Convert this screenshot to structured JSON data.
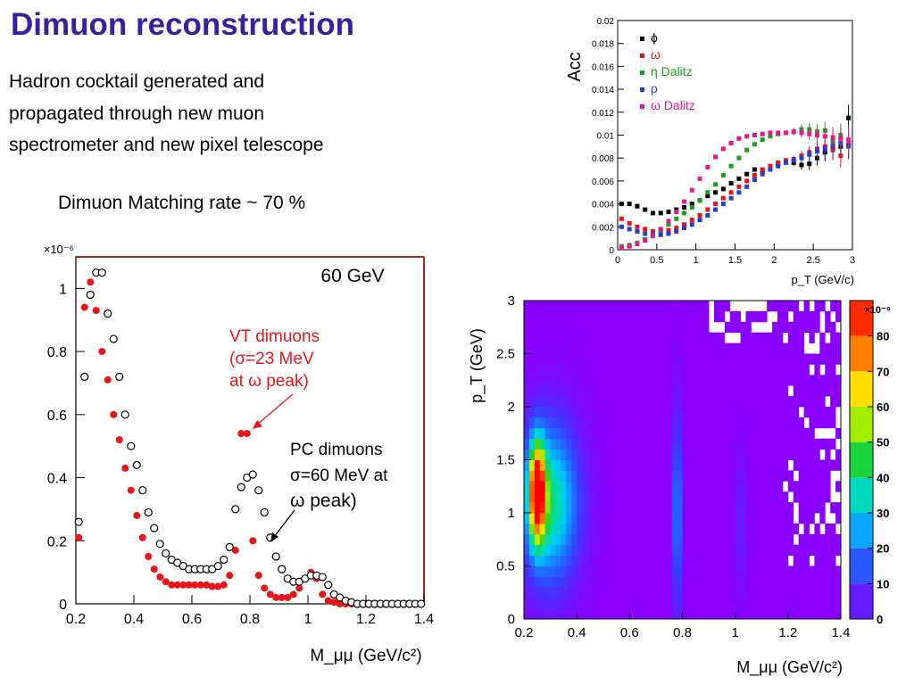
{
  "slide": {
    "title": "Dimuon reconstruction",
    "subtitle_lines": [
      "Hadron cocktail generated and",
      "propagated through new muon",
      "spectrometer and new pixel telescope"
    ],
    "matching_rate": "Dimuon Matching rate ~ 70 %"
  },
  "colors": {
    "title": "#3a1fa0",
    "vt": "#e8141a",
    "pc": "#000000",
    "frame": "#b22222"
  },
  "chart_data": [
    {
      "type": "scatter",
      "title": "60 GeV",
      "xlabel": "M_μμ (GeV/c²)",
      "ylabel": "",
      "exponent_label": "×10⁻⁶",
      "xlim": [
        0.2,
        1.4
      ],
      "ylim": [
        0,
        1.1
      ],
      "xticks": [
        "0.2",
        "0.4",
        "0.6",
        "0.8",
        "1",
        "1.2",
        "1.4"
      ],
      "yticks": [
        "0",
        "0.2",
        "0.4",
        "0.6",
        "0.8",
        "1"
      ],
      "annotations": {
        "vt_label": [
          "VT dimuons",
          "(σ=23 MeV",
          "at  ω peak)"
        ],
        "pc_label": [
          "PC dimuons",
          "σ=60 MeV at",
          "ω peak)"
        ]
      },
      "series": [
        {
          "name": "VT dimuons",
          "color": "#e8141a",
          "marker": "filled",
          "x": [
            0.21,
            0.23,
            0.25,
            0.27,
            0.29,
            0.31,
            0.33,
            0.35,
            0.37,
            0.39,
            0.41,
            0.43,
            0.45,
            0.47,
            0.49,
            0.51,
            0.53,
            0.55,
            0.57,
            0.59,
            0.61,
            0.63,
            0.65,
            0.67,
            0.69,
            0.71,
            0.73,
            0.75,
            0.77,
            0.79,
            0.81,
            0.83,
            0.85,
            0.87,
            0.89,
            0.91,
            0.93,
            0.95,
            0.97,
            0.99,
            1.01,
            1.03,
            1.05,
            1.07,
            1.09,
            1.11,
            1.13,
            1.15,
            1.17,
            1.19,
            1.21,
            1.23,
            1.25,
            1.27,
            1.29,
            1.31,
            1.33,
            1.35,
            1.37,
            1.39
          ],
          "y": [
            0.21,
            0.94,
            1.02,
            0.93,
            0.8,
            0.71,
            0.6,
            0.52,
            0.43,
            0.36,
            0.28,
            0.21,
            0.15,
            0.11,
            0.085,
            0.07,
            0.06,
            0.06,
            0.06,
            0.06,
            0.06,
            0.06,
            0.06,
            0.055,
            0.055,
            0.06,
            0.09,
            0.17,
            0.54,
            0.54,
            0.2,
            0.09,
            0.05,
            0.03,
            0.02,
            0.02,
            0.02,
            0.03,
            0.05,
            0.08,
            0.1,
            0.08,
            0.03,
            0.01,
            0.005,
            0,
            0,
            0,
            0,
            0,
            0,
            0,
            0,
            0,
            0,
            0,
            0,
            0,
            0,
            0
          ]
        },
        {
          "name": "PC dimuons",
          "color": "#000000",
          "marker": "open",
          "x": [
            0.21,
            0.23,
            0.25,
            0.27,
            0.29,
            0.31,
            0.33,
            0.35,
            0.37,
            0.39,
            0.41,
            0.43,
            0.45,
            0.47,
            0.49,
            0.51,
            0.53,
            0.55,
            0.57,
            0.59,
            0.61,
            0.63,
            0.65,
            0.67,
            0.69,
            0.71,
            0.73,
            0.75,
            0.77,
            0.79,
            0.81,
            0.83,
            0.85,
            0.87,
            0.89,
            0.91,
            0.93,
            0.95,
            0.97,
            0.99,
            1.01,
            1.03,
            1.05,
            1.07,
            1.09,
            1.11,
            1.13,
            1.15,
            1.17,
            1.19,
            1.21,
            1.23,
            1.25,
            1.27,
            1.29,
            1.31,
            1.33,
            1.35,
            1.37,
            1.39
          ],
          "y": [
            0.26,
            0.72,
            0.98,
            1.05,
            1.05,
            0.92,
            0.84,
            0.72,
            0.6,
            0.5,
            0.44,
            0.36,
            0.29,
            0.24,
            0.19,
            0.16,
            0.14,
            0.13,
            0.12,
            0.11,
            0.11,
            0.11,
            0.11,
            0.11,
            0.12,
            0.14,
            0.18,
            0.3,
            0.37,
            0.4,
            0.41,
            0.36,
            0.29,
            0.21,
            0.15,
            0.11,
            0.08,
            0.07,
            0.07,
            0.08,
            0.09,
            0.09,
            0.085,
            0.06,
            0.03,
            0.02,
            0.01,
            0.005,
            0,
            0,
            0,
            0,
            0,
            0,
            0,
            0,
            0,
            0,
            0,
            0
          ]
        }
      ]
    },
    {
      "type": "scatter",
      "title": "",
      "ylabel": "Acc",
      "xlabel": "p_T (GeV/c)",
      "xlim": [
        0,
        3
      ],
      "ylim": [
        0,
        0.02
      ],
      "xticks": [
        "0",
        "0.5",
        "1",
        "1.5",
        "2",
        "2.5",
        "3"
      ],
      "yticks": [
        "0",
        "0.002",
        "0.004",
        "0.006",
        "0.008",
        "0.01",
        "0.012",
        "0.014",
        "0.016",
        "0.018",
        "0.02"
      ],
      "series": [
        {
          "name": "ϕ",
          "color": "#000000",
          "x": [
            0.05,
            0.15,
            0.25,
            0.35,
            0.45,
            0.55,
            0.65,
            0.75,
            0.85,
            0.95,
            1.05,
            1.15,
            1.25,
            1.35,
            1.45,
            1.55,
            1.65,
            1.75,
            1.85,
            1.95,
            2.05,
            2.15,
            2.25,
            2.35,
            2.45,
            2.55,
            2.65,
            2.75,
            2.85,
            2.95
          ],
          "y": [
            0.004,
            0.004,
            0.0038,
            0.0035,
            0.0032,
            0.0032,
            0.0033,
            0.0035,
            0.0037,
            0.004,
            0.0043,
            0.0047,
            0.005,
            0.0053,
            0.0058,
            0.0062,
            0.0066,
            0.007,
            0.0068,
            0.0072,
            0.0075,
            0.0077,
            0.0076,
            0.0074,
            0.0075,
            0.008,
            0.0085,
            0.0088,
            0.009,
            0.0115
          ]
        },
        {
          "name": "ω",
          "color": "#e8141a",
          "x": [
            0.05,
            0.15,
            0.25,
            0.35,
            0.45,
            0.55,
            0.65,
            0.75,
            0.85,
            0.95,
            1.05,
            1.15,
            1.25,
            1.35,
            1.45,
            1.55,
            1.65,
            1.75,
            1.85,
            1.95,
            2.05,
            2.15,
            2.25,
            2.35,
            2.45,
            2.55,
            2.65,
            2.75,
            2.85,
            2.95
          ],
          "y": [
            0.0027,
            0.0023,
            0.002,
            0.0018,
            0.0016,
            0.0016,
            0.0017,
            0.0019,
            0.0022,
            0.0026,
            0.003,
            0.0035,
            0.004,
            0.0045,
            0.005,
            0.0055,
            0.006,
            0.0065,
            0.007,
            0.0073,
            0.0076,
            0.0078,
            0.0079,
            0.0082,
            0.0085,
            0.0088,
            0.009,
            0.0087,
            0.0082,
            0.0092
          ]
        },
        {
          "name": "η Dalitz",
          "color": "#18a018",
          "x": [
            0.05,
            0.15,
            0.25,
            0.35,
            0.45,
            0.55,
            0.65,
            0.75,
            0.85,
            0.95,
            1.05,
            1.15,
            1.25,
            1.35,
            1.45,
            1.55,
            1.65,
            1.75,
            1.85,
            1.95,
            2.05,
            2.15,
            2.25,
            2.35,
            2.45,
            2.55,
            2.65,
            2.75,
            2.85,
            2.95
          ],
          "y": [
            0.0003,
            0.0004,
            0.0006,
            0.0009,
            0.0013,
            0.0017,
            0.0022,
            0.0027,
            0.0032,
            0.0037,
            0.0043,
            0.005,
            0.0057,
            0.0065,
            0.0073,
            0.008,
            0.0087,
            0.0092,
            0.0096,
            0.0099,
            0.0101,
            0.0102,
            0.0103,
            0.0105,
            0.0105,
            0.0103,
            0.0104,
            0.0095,
            0.01,
            0.009
          ]
        },
        {
          "name": "ρ",
          "color": "#2040d0",
          "x": [
            0.05,
            0.15,
            0.25,
            0.35,
            0.45,
            0.55,
            0.65,
            0.75,
            0.85,
            0.95,
            1.05,
            1.15,
            1.25,
            1.35,
            1.45,
            1.55,
            1.65,
            1.75,
            1.85,
            1.95,
            2.05,
            2.15,
            2.25,
            2.35,
            2.45,
            2.55,
            2.65,
            2.75,
            2.85,
            2.95
          ],
          "y": [
            0.002,
            0.0018,
            0.0016,
            0.0014,
            0.0013,
            0.0013,
            0.0014,
            0.0016,
            0.0019,
            0.0022,
            0.0026,
            0.003,
            0.0035,
            0.004,
            0.0045,
            0.005,
            0.0055,
            0.0061,
            0.0066,
            0.007,
            0.0073,
            0.0076,
            0.0078,
            0.008,
            0.0083,
            0.0086,
            0.0088,
            0.0091,
            0.0093,
            0.0091
          ]
        },
        {
          "name": "ω Dalitz",
          "color": "#e8188c",
          "x": [
            0.05,
            0.15,
            0.25,
            0.35,
            0.45,
            0.55,
            0.65,
            0.75,
            0.85,
            0.95,
            1.05,
            1.15,
            1.25,
            1.35,
            1.45,
            1.55,
            1.65,
            1.75,
            1.85,
            1.95,
            2.05,
            2.15,
            2.25,
            2.35,
            2.45,
            2.55,
            2.65,
            2.75,
            2.85,
            2.95
          ],
          "y": [
            0.0002,
            0.0003,
            0.0005,
            0.0008,
            0.0012,
            0.0018,
            0.0025,
            0.0033,
            0.0042,
            0.0052,
            0.0062,
            0.0072,
            0.0081,
            0.0088,
            0.0093,
            0.0097,
            0.0099,
            0.01,
            0.0101,
            0.0102,
            0.0102,
            0.0102,
            0.0103,
            0.0102,
            0.0101,
            0.01,
            0.0099,
            0.0098,
            0.0097,
            0.0096
          ]
        }
      ]
    },
    {
      "type": "heatmap",
      "title": "",
      "xlabel": "M_μμ (GeV/c²)",
      "ylabel": "p_T (GeV)",
      "xlim": [
        0.2,
        1.4
      ],
      "ylim": [
        0,
        3
      ],
      "xticks": [
        "0.2",
        "0.4",
        "0.6",
        "0.8",
        "1",
        "1.2",
        "1.4"
      ],
      "yticks": [
        "0",
        "0.5",
        "1",
        "1.5",
        "2",
        "2.5",
        "3"
      ],
      "colorbar": {
        "exponent_label": "×10⁻⁹",
        "range": [
          0,
          90
        ],
        "ticks": [
          "0",
          "10",
          "20",
          "30",
          "40",
          "50",
          "60",
          "70",
          "80"
        ]
      },
      "bins": {
        "nx": 60,
        "ny": 30
      }
    }
  ]
}
